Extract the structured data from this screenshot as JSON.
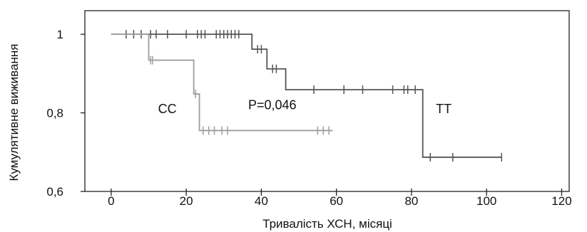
{
  "chart_data": {
    "type": "line",
    "title": "",
    "xlabel": "Тривалість ХСН, місяці",
    "ylabel": "Кумулятивне виживання",
    "xlim": [
      -7,
      122
    ],
    "ylim": [
      0.6,
      1.06
    ],
    "x_ticks": [
      0,
      20,
      40,
      60,
      80,
      100,
      120
    ],
    "y_ticks": [
      0.6,
      0.8,
      1.0
    ],
    "y_tick_labels": [
      "0,6",
      "0,8",
      "1"
    ],
    "grid": false,
    "legend": "none",
    "series": [
      {
        "name": "TT",
        "color": "#555555",
        "steps": [
          [
            0,
            1.0
          ],
          [
            37.5,
            0.962
          ],
          [
            41.5,
            0.912
          ],
          [
            46.5,
            0.859
          ],
          [
            83,
            0.687
          ],
          [
            104,
            0.687
          ]
        ],
        "censored": [
          [
            4,
            1.0
          ],
          [
            6,
            1.0
          ],
          [
            8,
            1.0
          ],
          [
            10.5,
            1.0
          ],
          [
            12,
            1.0
          ],
          [
            15,
            1.0
          ],
          [
            20,
            1.0
          ],
          [
            23,
            1.0
          ],
          [
            24,
            1.0
          ],
          [
            25,
            1.0
          ],
          [
            28,
            1.0
          ],
          [
            29,
            1.0
          ],
          [
            30,
            1.0
          ],
          [
            31,
            1.0
          ],
          [
            32,
            1.0
          ],
          [
            33,
            1.0
          ],
          [
            34,
            1.0
          ],
          [
            39,
            0.962
          ],
          [
            40,
            0.962
          ],
          [
            43,
            0.912
          ],
          [
            44,
            0.912
          ],
          [
            54,
            0.859
          ],
          [
            62,
            0.859
          ],
          [
            67,
            0.859
          ],
          [
            75,
            0.859
          ],
          [
            78,
            0.859
          ],
          [
            79,
            0.859
          ],
          [
            81,
            0.859
          ],
          [
            85,
            0.687
          ],
          [
            91,
            0.687
          ],
          [
            104,
            0.687
          ]
        ]
      },
      {
        "name": "CC",
        "color": "#9e9e9e",
        "steps": [
          [
            0,
            1.0
          ],
          [
            10,
            0.934
          ],
          [
            22,
            0.848
          ],
          [
            23.5,
            0.755
          ],
          [
            59,
            0.755
          ]
        ],
        "censored": [
          [
            10.5,
            0.934
          ],
          [
            11,
            0.934
          ],
          [
            22.5,
            0.848
          ],
          [
            24.5,
            0.755
          ],
          [
            26,
            0.755
          ],
          [
            27.5,
            0.755
          ],
          [
            29.5,
            0.755
          ],
          [
            31,
            0.755
          ],
          [
            55,
            0.755
          ],
          [
            56.5,
            0.755
          ],
          [
            58,
            0.755
          ]
        ]
      }
    ],
    "annotations": [
      {
        "text": "CC",
        "x": 12.5,
        "y": 0.81
      },
      {
        "text": "P=0,046",
        "x": 36.5,
        "y": 0.82
      },
      {
        "text": "TT",
        "x": 86.5,
        "y": 0.81
      }
    ]
  }
}
